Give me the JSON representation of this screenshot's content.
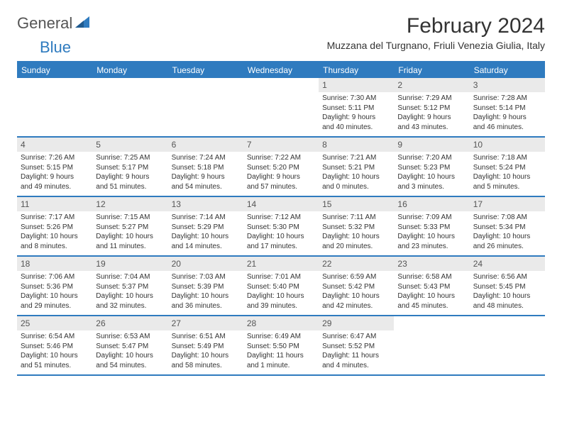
{
  "brand": {
    "name_part1": "General",
    "name_part2": "Blue"
  },
  "title": "February 2024",
  "location": "Muzzana del Turgnano, Friuli Venezia Giulia, Italy",
  "colors": {
    "brand_blue": "#2f7bbf",
    "header_bg": "#2f7bbf",
    "daynum_bg": "#eaeaea",
    "text": "#333333"
  },
  "day_names": [
    "Sunday",
    "Monday",
    "Tuesday",
    "Wednesday",
    "Thursday",
    "Friday",
    "Saturday"
  ],
  "weeks": [
    [
      null,
      null,
      null,
      null,
      {
        "d": "1",
        "sr": "Sunrise: 7:30 AM",
        "ss": "Sunset: 5:11 PM",
        "dl1": "Daylight: 9 hours",
        "dl2": "and 40 minutes."
      },
      {
        "d": "2",
        "sr": "Sunrise: 7:29 AM",
        "ss": "Sunset: 5:12 PM",
        "dl1": "Daylight: 9 hours",
        "dl2": "and 43 minutes."
      },
      {
        "d": "3",
        "sr": "Sunrise: 7:28 AM",
        "ss": "Sunset: 5:14 PM",
        "dl1": "Daylight: 9 hours",
        "dl2": "and 46 minutes."
      }
    ],
    [
      {
        "d": "4",
        "sr": "Sunrise: 7:26 AM",
        "ss": "Sunset: 5:15 PM",
        "dl1": "Daylight: 9 hours",
        "dl2": "and 49 minutes."
      },
      {
        "d": "5",
        "sr": "Sunrise: 7:25 AM",
        "ss": "Sunset: 5:17 PM",
        "dl1": "Daylight: 9 hours",
        "dl2": "and 51 minutes."
      },
      {
        "d": "6",
        "sr": "Sunrise: 7:24 AM",
        "ss": "Sunset: 5:18 PM",
        "dl1": "Daylight: 9 hours",
        "dl2": "and 54 minutes."
      },
      {
        "d": "7",
        "sr": "Sunrise: 7:22 AM",
        "ss": "Sunset: 5:20 PM",
        "dl1": "Daylight: 9 hours",
        "dl2": "and 57 minutes."
      },
      {
        "d": "8",
        "sr": "Sunrise: 7:21 AM",
        "ss": "Sunset: 5:21 PM",
        "dl1": "Daylight: 10 hours",
        "dl2": "and 0 minutes."
      },
      {
        "d": "9",
        "sr": "Sunrise: 7:20 AM",
        "ss": "Sunset: 5:23 PM",
        "dl1": "Daylight: 10 hours",
        "dl2": "and 3 minutes."
      },
      {
        "d": "10",
        "sr": "Sunrise: 7:18 AM",
        "ss": "Sunset: 5:24 PM",
        "dl1": "Daylight: 10 hours",
        "dl2": "and 5 minutes."
      }
    ],
    [
      {
        "d": "11",
        "sr": "Sunrise: 7:17 AM",
        "ss": "Sunset: 5:26 PM",
        "dl1": "Daylight: 10 hours",
        "dl2": "and 8 minutes."
      },
      {
        "d": "12",
        "sr": "Sunrise: 7:15 AM",
        "ss": "Sunset: 5:27 PM",
        "dl1": "Daylight: 10 hours",
        "dl2": "and 11 minutes."
      },
      {
        "d": "13",
        "sr": "Sunrise: 7:14 AM",
        "ss": "Sunset: 5:29 PM",
        "dl1": "Daylight: 10 hours",
        "dl2": "and 14 minutes."
      },
      {
        "d": "14",
        "sr": "Sunrise: 7:12 AM",
        "ss": "Sunset: 5:30 PM",
        "dl1": "Daylight: 10 hours",
        "dl2": "and 17 minutes."
      },
      {
        "d": "15",
        "sr": "Sunrise: 7:11 AM",
        "ss": "Sunset: 5:32 PM",
        "dl1": "Daylight: 10 hours",
        "dl2": "and 20 minutes."
      },
      {
        "d": "16",
        "sr": "Sunrise: 7:09 AM",
        "ss": "Sunset: 5:33 PM",
        "dl1": "Daylight: 10 hours",
        "dl2": "and 23 minutes."
      },
      {
        "d": "17",
        "sr": "Sunrise: 7:08 AM",
        "ss": "Sunset: 5:34 PM",
        "dl1": "Daylight: 10 hours",
        "dl2": "and 26 minutes."
      }
    ],
    [
      {
        "d": "18",
        "sr": "Sunrise: 7:06 AM",
        "ss": "Sunset: 5:36 PM",
        "dl1": "Daylight: 10 hours",
        "dl2": "and 29 minutes."
      },
      {
        "d": "19",
        "sr": "Sunrise: 7:04 AM",
        "ss": "Sunset: 5:37 PM",
        "dl1": "Daylight: 10 hours",
        "dl2": "and 32 minutes."
      },
      {
        "d": "20",
        "sr": "Sunrise: 7:03 AM",
        "ss": "Sunset: 5:39 PM",
        "dl1": "Daylight: 10 hours",
        "dl2": "and 36 minutes."
      },
      {
        "d": "21",
        "sr": "Sunrise: 7:01 AM",
        "ss": "Sunset: 5:40 PM",
        "dl1": "Daylight: 10 hours",
        "dl2": "and 39 minutes."
      },
      {
        "d": "22",
        "sr": "Sunrise: 6:59 AM",
        "ss": "Sunset: 5:42 PM",
        "dl1": "Daylight: 10 hours",
        "dl2": "and 42 minutes."
      },
      {
        "d": "23",
        "sr": "Sunrise: 6:58 AM",
        "ss": "Sunset: 5:43 PM",
        "dl1": "Daylight: 10 hours",
        "dl2": "and 45 minutes."
      },
      {
        "d": "24",
        "sr": "Sunrise: 6:56 AM",
        "ss": "Sunset: 5:45 PM",
        "dl1": "Daylight: 10 hours",
        "dl2": "and 48 minutes."
      }
    ],
    [
      {
        "d": "25",
        "sr": "Sunrise: 6:54 AM",
        "ss": "Sunset: 5:46 PM",
        "dl1": "Daylight: 10 hours",
        "dl2": "and 51 minutes."
      },
      {
        "d": "26",
        "sr": "Sunrise: 6:53 AM",
        "ss": "Sunset: 5:47 PM",
        "dl1": "Daylight: 10 hours",
        "dl2": "and 54 minutes."
      },
      {
        "d": "27",
        "sr": "Sunrise: 6:51 AM",
        "ss": "Sunset: 5:49 PM",
        "dl1": "Daylight: 10 hours",
        "dl2": "and 58 minutes."
      },
      {
        "d": "28",
        "sr": "Sunrise: 6:49 AM",
        "ss": "Sunset: 5:50 PM",
        "dl1": "Daylight: 11 hours",
        "dl2": "and 1 minute."
      },
      {
        "d": "29",
        "sr": "Sunrise: 6:47 AM",
        "ss": "Sunset: 5:52 PM",
        "dl1": "Daylight: 11 hours",
        "dl2": "and 4 minutes."
      },
      null,
      null
    ]
  ]
}
